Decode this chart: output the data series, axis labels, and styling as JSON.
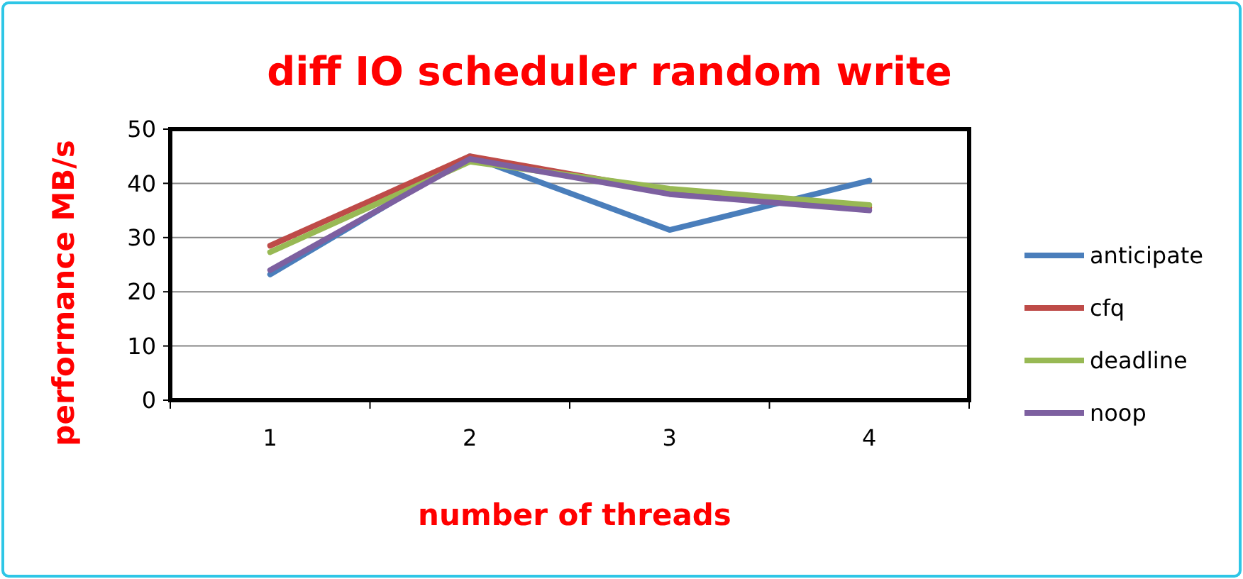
{
  "chart_data": {
    "type": "line",
    "title": "diff IO scheduler random write",
    "xlabel": "number of threads",
    "ylabel": "performance MB/s",
    "categories": [
      "1",
      "2",
      "3",
      "4"
    ],
    "series": [
      {
        "name": "anticipate",
        "color": "#4a7ebb",
        "values": [
          23.2,
          45,
          31.4,
          40.5
        ]
      },
      {
        "name": "cfq",
        "color": "#be4b48",
        "values": [
          28.5,
          45,
          38.5,
          35.5
        ]
      },
      {
        "name": "deadline",
        "color": "#98b954",
        "values": [
          27.3,
          44,
          39,
          36
        ]
      },
      {
        "name": "noop",
        "color": "#7d60a0",
        "values": [
          24,
          44.5,
          38,
          35
        ]
      }
    ],
    "ylim": [
      0,
      50
    ],
    "yticks": [
      0,
      10,
      20,
      30,
      40,
      50
    ],
    "grid": "y",
    "legend": "right",
    "marker": "none",
    "line_style": "solid"
  }
}
